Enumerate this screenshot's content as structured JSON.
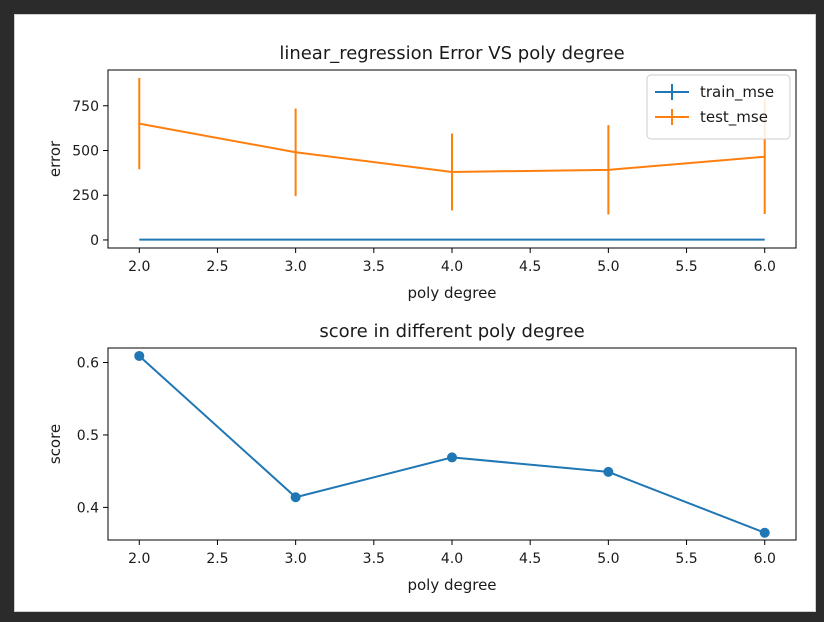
{
  "chart_data": [
    {
      "type": "line",
      "title": "linear_regression Error VS poly degree",
      "xlabel": "poly degree",
      "ylabel": "error",
      "x": [
        2.0,
        3.0,
        4.0,
        5.0,
        6.0
      ],
      "xlim": [
        1.8,
        6.2
      ],
      "ylim": [
        -45,
        950
      ],
      "xticks": [
        "2.0",
        "2.5",
        "3.0",
        "3.5",
        "4.0",
        "4.5",
        "5.0",
        "5.5",
        "6.0"
      ],
      "xtick_values": [
        2.0,
        2.5,
        3.0,
        3.5,
        4.0,
        4.5,
        5.0,
        5.5,
        6.0
      ],
      "yticks": [
        "0",
        "250",
        "500",
        "750"
      ],
      "ytick_values": [
        0,
        250,
        500,
        750
      ],
      "legend": "top-right",
      "series": [
        {
          "name": "train_mse",
          "color": "#1f77b4",
          "values": [
            2,
            2,
            2,
            2,
            2
          ],
          "err": [
            0,
            0,
            0,
            0,
            0
          ]
        },
        {
          "name": "test_mse",
          "color": "#ff7f0e",
          "values": [
            650,
            490,
            380,
            392,
            465
          ],
          "err": [
            255,
            245,
            215,
            250,
            320
          ]
        }
      ]
    },
    {
      "type": "line",
      "title": "score in different poly degree",
      "xlabel": "poly degree",
      "ylabel": "score",
      "x": [
        2.0,
        3.0,
        4.0,
        5.0,
        6.0
      ],
      "xlim": [
        1.8,
        6.2
      ],
      "ylim": [
        0.355,
        0.62
      ],
      "xticks": [
        "2.0",
        "2.5",
        "3.0",
        "3.5",
        "4.0",
        "4.5",
        "5.0",
        "5.5",
        "6.0"
      ],
      "xtick_values": [
        2.0,
        2.5,
        3.0,
        3.5,
        4.0,
        4.5,
        5.0,
        5.5,
        6.0
      ],
      "yticks": [
        "0.4",
        "0.5",
        "0.6"
      ],
      "ytick_values": [
        0.4,
        0.5,
        0.6
      ],
      "series": [
        {
          "color": "#1f77b4",
          "marker": "circle",
          "values": [
            0.609,
            0.414,
            0.469,
            0.449,
            0.365
          ]
        }
      ]
    }
  ]
}
